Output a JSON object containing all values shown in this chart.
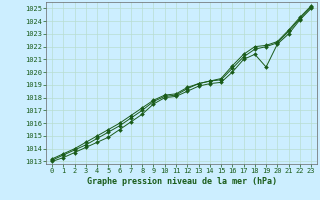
{
  "title": "Graphe pression niveau de la mer (hPa)",
  "bg_color": "#cceeff",
  "grid_color": "#b8ddd0",
  "line_color": "#1a5c1a",
  "xlim_min": -0.5,
  "xlim_max": 23.5,
  "ylim_min": 1012.8,
  "ylim_max": 1025.5,
  "xticks": [
    0,
    1,
    2,
    3,
    4,
    5,
    6,
    7,
    8,
    9,
    10,
    11,
    12,
    13,
    14,
    15,
    16,
    17,
    18,
    19,
    20,
    21,
    22,
    23
  ],
  "yticks": [
    1013,
    1014,
    1015,
    1016,
    1017,
    1018,
    1019,
    1020,
    1021,
    1022,
    1023,
    1024,
    1025
  ],
  "series1": [
    1013.0,
    1013.3,
    1013.7,
    1014.1,
    1014.5,
    1014.9,
    1015.5,
    1016.1,
    1016.7,
    1017.5,
    1018.0,
    1018.1,
    1018.5,
    1018.9,
    1019.1,
    1019.2,
    1020.0,
    1021.0,
    1021.4,
    1020.4,
    1022.2,
    1023.0,
    1024.1,
    1025.0
  ],
  "series2": [
    1013.1,
    1013.5,
    1013.9,
    1014.3,
    1014.8,
    1015.3,
    1015.8,
    1016.4,
    1017.0,
    1017.7,
    1018.1,
    1018.2,
    1018.7,
    1019.1,
    1019.3,
    1019.4,
    1020.3,
    1021.2,
    1021.8,
    1022.0,
    1022.3,
    1023.2,
    1024.2,
    1025.1
  ],
  "series3": [
    1013.2,
    1013.6,
    1014.0,
    1014.5,
    1015.0,
    1015.5,
    1016.0,
    1016.6,
    1017.2,
    1017.8,
    1018.2,
    1018.3,
    1018.8,
    1019.1,
    1019.3,
    1019.5,
    1020.5,
    1021.4,
    1022.0,
    1022.1,
    1022.4,
    1023.3,
    1024.3,
    1025.2
  ],
  "tick_fontsize": 5,
  "label_fontsize": 6,
  "linewidth": 0.7,
  "markersize": 2.0
}
